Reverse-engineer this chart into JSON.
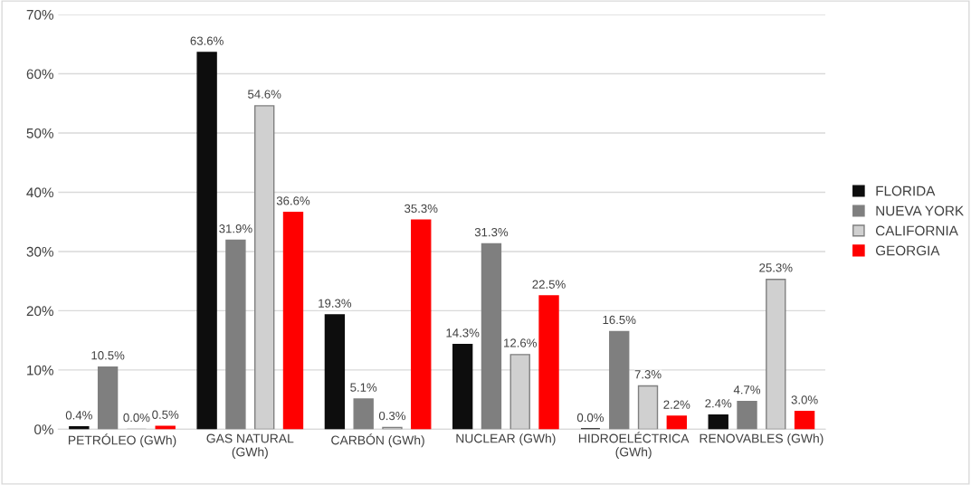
{
  "chart_data": {
    "type": "bar",
    "categories": [
      "PETRÓLEO (GWh)",
      "GAS NATURAL\n(GWh)",
      "CARBÓN (GWh)",
      "NUCLEAR (GWh)",
      "HIDROELÉCTRICA\n(GWh)",
      "RENOVABLES (GWh)"
    ],
    "series": [
      {
        "name": "FLORIDA",
        "color": "#0d0d0d",
        "values": [
          0.4,
          63.6,
          19.3,
          14.3,
          0.0,
          2.4
        ],
        "value_labels": [
          "0.4%",
          "63.6%",
          "19.3%",
          "14.3%",
          "0.0%",
          "2.4%"
        ]
      },
      {
        "name": "NUEVA YORK",
        "color": "#7f7f7f",
        "values": [
          10.5,
          31.9,
          5.1,
          31.3,
          16.5,
          4.7
        ],
        "value_labels": [
          "10.5%",
          "31.9%",
          "5.1%",
          "31.3%",
          "16.5%",
          "4.7%"
        ]
      },
      {
        "name": "CALIFORNIA",
        "color": "#d0d0d0",
        "values": [
          0.0,
          54.6,
          0.3,
          12.6,
          7.3,
          25.3
        ],
        "value_labels": [
          "0.0%",
          "54.6%",
          "0.3%",
          "12.6%",
          "7.3%",
          "25.3%"
        ]
      },
      {
        "name": "GEORGIA",
        "color": "#ff0000",
        "values": [
          0.5,
          36.6,
          35.3,
          22.5,
          2.2,
          3.0
        ],
        "value_labels": [
          "0.5%",
          "36.6%",
          "35.3%",
          "22.5%",
          "2.2%",
          "3.0%"
        ]
      }
    ],
    "ylim": [
      0,
      70
    ],
    "yticks": [
      {
        "value": 0,
        "label": "0%"
      },
      {
        "value": 10,
        "label": "10%"
      },
      {
        "value": 20,
        "label": "20%"
      },
      {
        "value": 30,
        "label": "30%"
      },
      {
        "value": 40,
        "label": "40%"
      },
      {
        "value": 50,
        "label": "50%"
      },
      {
        "value": 60,
        "label": "60%"
      },
      {
        "value": 70,
        "label": "70%"
      }
    ],
    "grid": "y",
    "legend": "right"
  }
}
